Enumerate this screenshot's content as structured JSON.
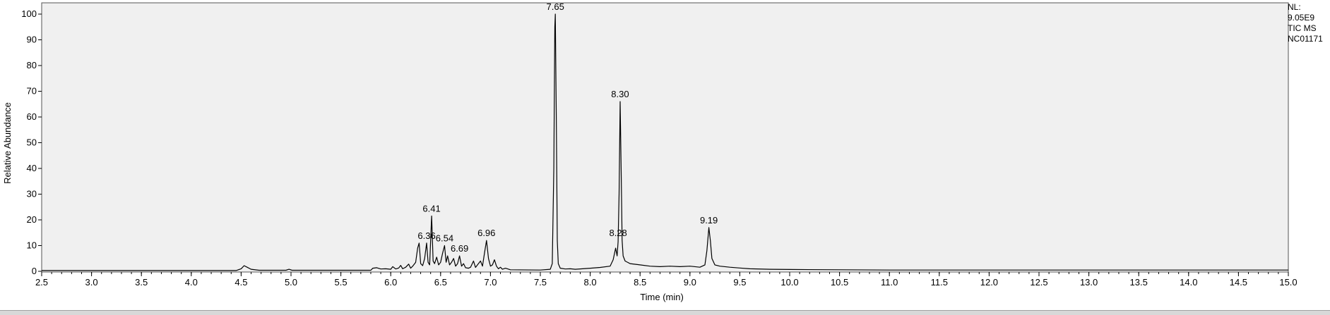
{
  "chart_data": {
    "type": "line",
    "xlabel": "Time (min)",
    "ylabel": "Relative Abundance",
    "xlim": [
      2.5,
      15.0
    ],
    "ylim": [
      0,
      100
    ],
    "x_ticks": [
      "2.5",
      "3.0",
      "3.5",
      "4.0",
      "4.5",
      "5.0",
      "5.5",
      "6.0",
      "6.5",
      "7.0",
      "7.5",
      "8.0",
      "8.5",
      "9.0",
      "9.5",
      "10.0",
      "10.5",
      "11.0",
      "11.5",
      "12.0",
      "12.5",
      "13.0",
      "13.5",
      "14.0",
      "14.5",
      "15.0"
    ],
    "y_ticks": [
      "0",
      "10",
      "20",
      "30",
      "40",
      "50",
      "60",
      "70",
      "80",
      "90",
      "100"
    ],
    "grid": false,
    "info": [
      "NL:",
      "9.05E9",
      "TIC  MS",
      "NC01171"
    ],
    "peak_labels": [
      {
        "label": "6.36",
        "x": 6.36,
        "y": 11
      },
      {
        "label": "6.41",
        "x": 6.41,
        "y": 21.5
      },
      {
        "label": "6.54",
        "x": 6.54,
        "y": 10
      },
      {
        "label": "6.69",
        "x": 6.69,
        "y": 6
      },
      {
        "label": "6.96",
        "x": 6.96,
        "y": 12
      },
      {
        "label": "7.65",
        "x": 7.65,
        "y": 100
      },
      {
        "label": "8.28",
        "x": 8.28,
        "y": 12
      },
      {
        "label": "8.30",
        "x": 8.3,
        "y": 66
      },
      {
        "label": "9.19",
        "x": 9.19,
        "y": 17
      }
    ],
    "series": [
      {
        "color": "#000000",
        "points": [
          [
            2.5,
            0.3
          ],
          [
            4.45,
            0.3
          ],
          [
            4.5,
            1.0
          ],
          [
            4.53,
            2.2
          ],
          [
            4.56,
            1.6
          ],
          [
            4.6,
            0.8
          ],
          [
            4.68,
            0.4
          ],
          [
            4.95,
            0.4
          ],
          [
            4.98,
            0.8
          ],
          [
            5.01,
            0.4
          ],
          [
            5.8,
            0.4
          ],
          [
            5.82,
            1.2
          ],
          [
            5.86,
            1.4
          ],
          [
            5.9,
            0.9
          ],
          [
            5.95,
            1.0
          ],
          [
            6.0,
            0.8
          ],
          [
            6.02,
            1.8
          ],
          [
            6.05,
            0.9
          ],
          [
            6.08,
            1.3
          ],
          [
            6.1,
            2.3
          ],
          [
            6.12,
            1.0
          ],
          [
            6.15,
            1.6
          ],
          [
            6.18,
            2.8
          ],
          [
            6.2,
            1.2
          ],
          [
            6.22,
            2.0
          ],
          [
            6.25,
            3.5
          ],
          [
            6.27,
            9.0
          ],
          [
            6.285,
            11.0
          ],
          [
            6.3,
            3.0
          ],
          [
            6.32,
            2.2
          ],
          [
            6.34,
            5.0
          ],
          [
            6.36,
            11.0
          ],
          [
            6.375,
            3.5
          ],
          [
            6.39,
            2.5
          ],
          [
            6.41,
            21.5
          ],
          [
            6.425,
            4.0
          ],
          [
            6.44,
            3.0
          ],
          [
            6.46,
            5.5
          ],
          [
            6.48,
            2.5
          ],
          [
            6.5,
            3.5
          ],
          [
            6.52,
            7.0
          ],
          [
            6.54,
            10.0
          ],
          [
            6.555,
            3.5
          ],
          [
            6.57,
            6.0
          ],
          [
            6.59,
            2.5
          ],
          [
            6.61,
            3.5
          ],
          [
            6.63,
            5.0
          ],
          [
            6.65,
            2.0
          ],
          [
            6.67,
            3.0
          ],
          [
            6.69,
            6.0
          ],
          [
            6.71,
            2.0
          ],
          [
            6.73,
            3.0
          ],
          [
            6.75,
            1.4
          ],
          [
            6.78,
            1.2
          ],
          [
            6.8,
            1.6
          ],
          [
            6.83,
            4.0
          ],
          [
            6.85,
            1.5
          ],
          [
            6.87,
            2.5
          ],
          [
            6.9,
            4.0
          ],
          [
            6.92,
            2.0
          ],
          [
            6.94,
            7.0
          ],
          [
            6.96,
            12.0
          ],
          [
            6.98,
            5.0
          ],
          [
            7.0,
            2.0
          ],
          [
            7.02,
            2.5
          ],
          [
            7.04,
            4.5
          ],
          [
            7.06,
            2.0
          ],
          [
            7.08,
            1.0
          ],
          [
            7.1,
            1.6
          ],
          [
            7.12,
            0.8
          ],
          [
            7.15,
            1.2
          ],
          [
            7.2,
            0.6
          ],
          [
            7.5,
            0.5
          ],
          [
            7.6,
            0.8
          ],
          [
            7.62,
            3.0
          ],
          [
            7.635,
            40.0
          ],
          [
            7.645,
            95.0
          ],
          [
            7.65,
            100.0
          ],
          [
            7.66,
            60.0
          ],
          [
            7.67,
            12.0
          ],
          [
            7.68,
            3.0
          ],
          [
            7.7,
            1.2
          ],
          [
            7.75,
            0.9
          ],
          [
            7.8,
            1.0
          ],
          [
            7.85,
            0.8
          ],
          [
            8.0,
            1.2
          ],
          [
            8.1,
            1.5
          ],
          [
            8.2,
            2.0
          ],
          [
            8.23,
            4.5
          ],
          [
            8.255,
            9.0
          ],
          [
            8.27,
            6.0
          ],
          [
            8.28,
            11.5
          ],
          [
            8.29,
            30.0
          ],
          [
            8.3,
            66.0
          ],
          [
            8.31,
            40.0
          ],
          [
            8.32,
            12.0
          ],
          [
            8.33,
            6.0
          ],
          [
            8.35,
            4.0
          ],
          [
            8.4,
            3.0
          ],
          [
            8.5,
            2.5
          ],
          [
            8.6,
            2.0
          ],
          [
            8.7,
            1.8
          ],
          [
            8.8,
            2.0
          ],
          [
            8.9,
            1.8
          ],
          [
            9.0,
            2.0
          ],
          [
            9.1,
            1.6
          ],
          [
            9.15,
            2.5
          ],
          [
            9.17,
            8.0
          ],
          [
            9.19,
            17.0
          ],
          [
            9.205,
            12.0
          ],
          [
            9.22,
            5.0
          ],
          [
            9.25,
            2.5
          ],
          [
            9.3,
            2.0
          ],
          [
            9.4,
            1.6
          ],
          [
            9.5,
            1.3
          ],
          [
            9.6,
            1.0
          ],
          [
            9.8,
            0.8
          ],
          [
            10.0,
            0.7
          ],
          [
            11.0,
            0.5
          ],
          [
            12.0,
            0.5
          ],
          [
            13.0,
            0.5
          ],
          [
            14.0,
            0.5
          ],
          [
            15.0,
            0.5
          ]
        ]
      }
    ]
  }
}
